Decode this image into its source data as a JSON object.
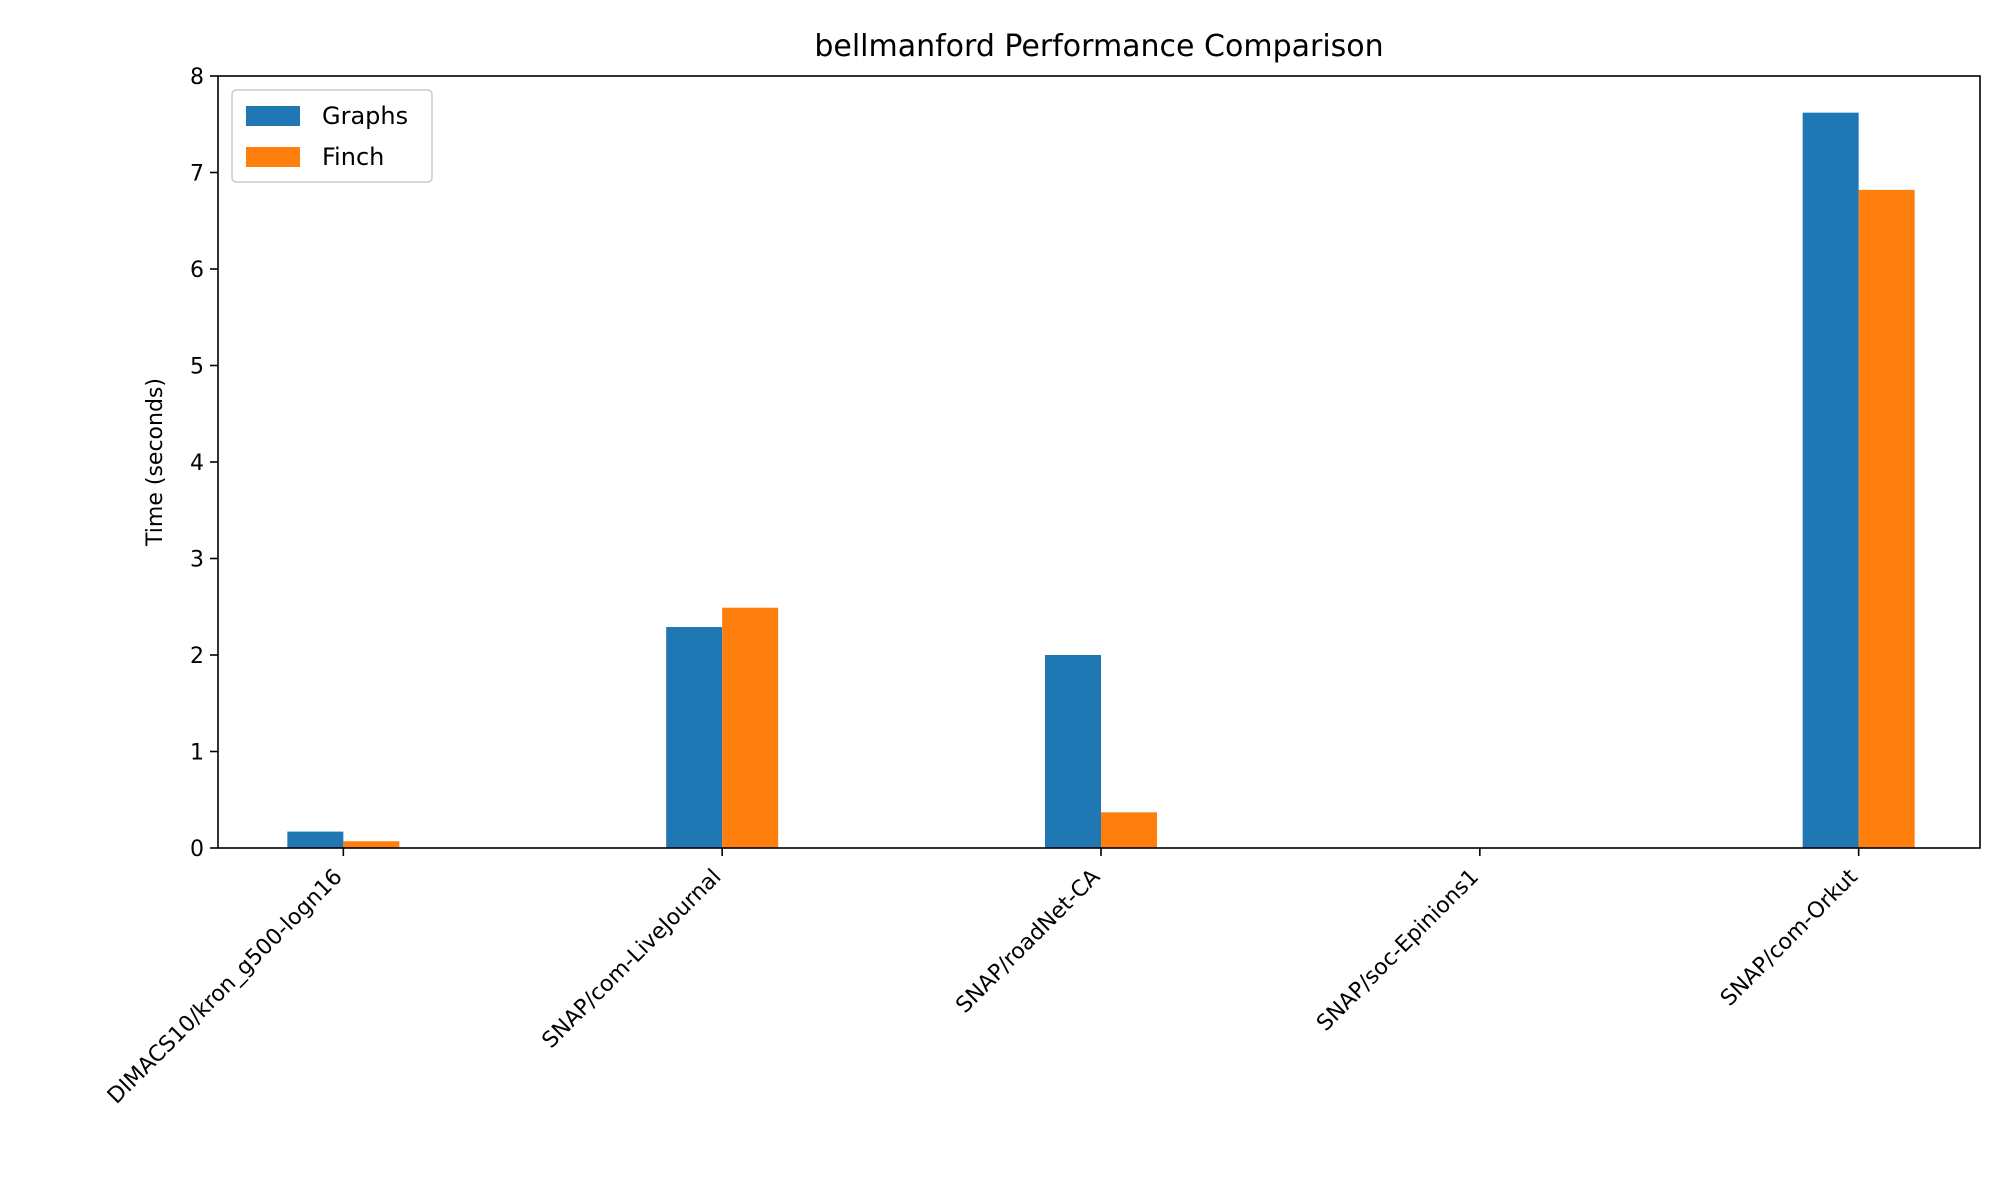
{
  "chart_data": {
    "type": "bar",
    "title": "bellmanford Performance Comparison",
    "xlabel": "",
    "ylabel": "Time (seconds)",
    "ylim": [
      0,
      8
    ],
    "yticks": [
      0,
      1,
      2,
      3,
      4,
      5,
      6,
      7,
      8
    ],
    "categories": [
      "DIMACS10/kron_g500-logn16",
      "SNAP/com-LiveJournal",
      "SNAP/roadNet-CA",
      "SNAP/soc-Epinions1",
      "SNAP/com-Orkut"
    ],
    "series": [
      {
        "name": "Graphs",
        "color": "#1f77b4",
        "values": [
          0.17,
          2.29,
          2.0,
          0,
          7.62
        ]
      },
      {
        "name": "Finch",
        "color": "#ff7f0e",
        "values": [
          0.07,
          2.49,
          0.37,
          0,
          6.82
        ]
      }
    ],
    "legend_position": "top-left",
    "grid": false
  }
}
